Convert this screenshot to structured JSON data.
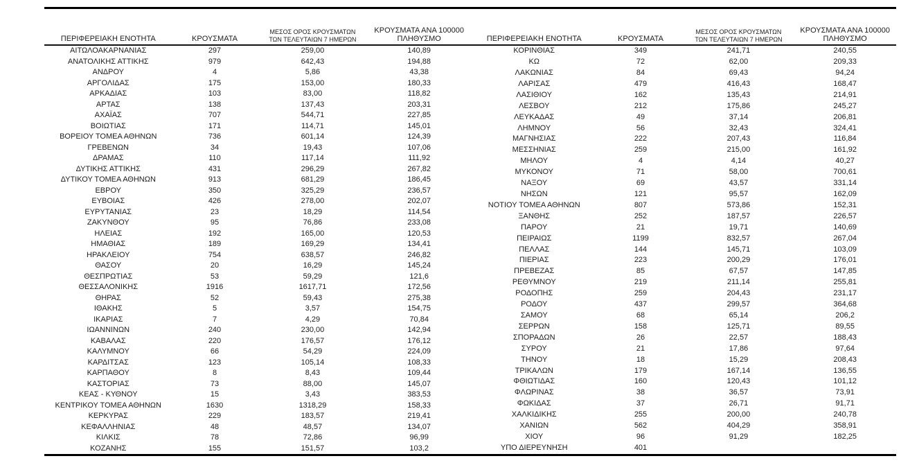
{
  "headers": {
    "region": "ΠΕΡΙΦΕΡΕΙΑΚΗ ΕΝΟΤΗΤΑ",
    "cases": "ΚΡΟΥΣΜΑΤΑ",
    "avg7_line1": "ΜΕΣΟΣ ΟΡΟΣ ΚΡΟΥΣΜΑΤΩΝ",
    "avg7_line2": "ΤΩΝ ΤΕΛΕΥΤΑΙΩΝ 7 ΗΜΕΡΩΝ",
    "per100k_line1": "ΚΡΟΥΣΜΑΤΑ ΑΝΑ 100000",
    "per100k_line2": "ΠΛΗΘΥΣΜΟ"
  },
  "left_table": {
    "rows": [
      {
        "name": "ΑΙΤΩΛΟΑΚΑΡΝΑΝΙΑΣ",
        "cases": "297",
        "avg7": "259,00",
        "per100k": "140,89"
      },
      {
        "name": "ΑΝΑΤΟΛΙΚΗΣ ΑΤΤΙΚΗΣ",
        "cases": "979",
        "avg7": "642,43",
        "per100k": "194,88"
      },
      {
        "name": "ΑΝΔΡΟΥ",
        "cases": "4",
        "avg7": "5,86",
        "per100k": "43,38"
      },
      {
        "name": "ΑΡΓΟΛΙΔΑΣ",
        "cases": "175",
        "avg7": "153,00",
        "per100k": "180,33"
      },
      {
        "name": "ΑΡΚΑΔΙΑΣ",
        "cases": "103",
        "avg7": "83,00",
        "per100k": "118,82"
      },
      {
        "name": "ΑΡΤΑΣ",
        "cases": "138",
        "avg7": "137,43",
        "per100k": "203,31"
      },
      {
        "name": "ΑΧΑΪΑΣ",
        "cases": "707",
        "avg7": "544,71",
        "per100k": "227,85"
      },
      {
        "name": "ΒΟΙΩΤΙΑΣ",
        "cases": "171",
        "avg7": "114,71",
        "per100k": "145,01"
      },
      {
        "name": "ΒΟΡΕΙΟΥ ΤΟΜΕΑ ΑΘΗΝΩΝ",
        "cases": "736",
        "avg7": "601,14",
        "per100k": "124,39"
      },
      {
        "name": "ΓΡΕΒΕΝΩΝ",
        "cases": "34",
        "avg7": "19,43",
        "per100k": "107,06"
      },
      {
        "name": "ΔΡΑΜΑΣ",
        "cases": "110",
        "avg7": "117,14",
        "per100k": "111,92"
      },
      {
        "name": "ΔΥΤΙΚΗΣ ΑΤΤΙΚΗΣ",
        "cases": "431",
        "avg7": "296,29",
        "per100k": "267,82"
      },
      {
        "name": "ΔΥΤΙΚΟΥ ΤΟΜΕΑ ΑΘΗΝΩΝ",
        "cases": "913",
        "avg7": "681,29",
        "per100k": "186,45"
      },
      {
        "name": "ΕΒΡΟΥ",
        "cases": "350",
        "avg7": "325,29",
        "per100k": "236,57"
      },
      {
        "name": "ΕΥΒΟΙΑΣ",
        "cases": "426",
        "avg7": "278,00",
        "per100k": "202,07"
      },
      {
        "name": "ΕΥΡΥΤΑΝΙΑΣ",
        "cases": "23",
        "avg7": "18,29",
        "per100k": "114,54"
      },
      {
        "name": "ΖΑΚΥΝΘΟΥ",
        "cases": "95",
        "avg7": "76,86",
        "per100k": "233,08"
      },
      {
        "name": "ΗΛΕΙΑΣ",
        "cases": "192",
        "avg7": "165,00",
        "per100k": "120,53"
      },
      {
        "name": "ΗΜΑΘΙΑΣ",
        "cases": "189",
        "avg7": "169,29",
        "per100k": "134,41"
      },
      {
        "name": "ΗΡΑΚΛΕΙΟΥ",
        "cases": "754",
        "avg7": "638,57",
        "per100k": "246,82"
      },
      {
        "name": "ΘΑΣΟΥ",
        "cases": "20",
        "avg7": "16,29",
        "per100k": "145,24"
      },
      {
        "name": "ΘΕΣΠΡΩΤΙΑΣ",
        "cases": "53",
        "avg7": "59,29",
        "per100k": "121,6"
      },
      {
        "name": "ΘΕΣΣΑΛΟΝΙΚΗΣ",
        "cases": "1916",
        "avg7": "1617,71",
        "per100k": "172,56"
      },
      {
        "name": "ΘΗΡΑΣ",
        "cases": "52",
        "avg7": "59,43",
        "per100k": "275,38"
      },
      {
        "name": "ΙΘΑΚΗΣ",
        "cases": "5",
        "avg7": "3,57",
        "per100k": "154,75"
      },
      {
        "name": "ΙΚΑΡΙΑΣ",
        "cases": "7",
        "avg7": "4,29",
        "per100k": "70,84"
      },
      {
        "name": "ΙΩΑΝΝΙΝΩΝ",
        "cases": "240",
        "avg7": "230,00",
        "per100k": "142,94"
      },
      {
        "name": "ΚΑΒΑΛΑΣ",
        "cases": "220",
        "avg7": "176,57",
        "per100k": "176,12"
      },
      {
        "name": "ΚΑΛΥΜΝΟΥ",
        "cases": "66",
        "avg7": "54,29",
        "per100k": "224,09"
      },
      {
        "name": "ΚΑΡΔΙΤΣΑΣ",
        "cases": "123",
        "avg7": "105,14",
        "per100k": "108,33"
      },
      {
        "name": "ΚΑΡΠΑΘΟΥ",
        "cases": "8",
        "avg7": "8,43",
        "per100k": "109,44"
      },
      {
        "name": "ΚΑΣΤΟΡΙΑΣ",
        "cases": "73",
        "avg7": "88,00",
        "per100k": "145,07"
      },
      {
        "name": "ΚΕΑΣ - ΚΥΘΝΟΥ",
        "cases": "15",
        "avg7": "3,43",
        "per100k": "383,53"
      },
      {
        "name": "ΚΕΝΤΡΙΚΟΥ ΤΟΜΕΑ ΑΘΗΝΩΝ",
        "cases": "1630",
        "avg7": "1318,29",
        "per100k": "158,33"
      },
      {
        "name": "ΚΕΡΚΥΡΑΣ",
        "cases": "229",
        "avg7": "183,57",
        "per100k": "219,41"
      },
      {
        "name": "ΚΕΦΑΛΛΗΝΙΑΣ",
        "cases": "48",
        "avg7": "48,57",
        "per100k": "134,07"
      },
      {
        "name": "ΚΙΛΚΙΣ",
        "cases": "78",
        "avg7": "72,86",
        "per100k": "96,99"
      },
      {
        "name": "ΚΟΖΑΝΗΣ",
        "cases": "155",
        "avg7": "151,57",
        "per100k": "103,2"
      }
    ]
  },
  "right_table": {
    "rows": [
      {
        "name": "ΚΟΡΙΝΘΙΑΣ",
        "cases": "349",
        "avg7": "241,71",
        "per100k": "240,55"
      },
      {
        "name": "ΚΩ",
        "cases": "72",
        "avg7": "62,00",
        "per100k": "209,33"
      },
      {
        "name": "ΛΑΚΩΝΙΑΣ",
        "cases": "84",
        "avg7": "69,43",
        "per100k": "94,24"
      },
      {
        "name": "ΛΑΡΙΣΑΣ",
        "cases": "479",
        "avg7": "416,43",
        "per100k": "168,47"
      },
      {
        "name": "ΛΑΣΙΘΙΟΥ",
        "cases": "162",
        "avg7": "135,43",
        "per100k": "214,91"
      },
      {
        "name": "ΛΕΣΒΟΥ",
        "cases": "212",
        "avg7": "175,86",
        "per100k": "245,27"
      },
      {
        "name": "ΛΕΥΚΑΔΑΣ",
        "cases": "49",
        "avg7": "37,14",
        "per100k": "206,81"
      },
      {
        "name": "ΛΗΜΝΟΥ",
        "cases": "56",
        "avg7": "32,43",
        "per100k": "324,41"
      },
      {
        "name": "ΜΑΓΝΗΣΙΑΣ",
        "cases": "222",
        "avg7": "207,43",
        "per100k": "116,84"
      },
      {
        "name": "ΜΕΣΣΗΝΙΑΣ",
        "cases": "259",
        "avg7": "215,00",
        "per100k": "161,92"
      },
      {
        "name": "ΜΗΛΟΥ",
        "cases": "4",
        "avg7": "4,14",
        "per100k": "40,27"
      },
      {
        "name": "ΜΥΚΟΝΟΥ",
        "cases": "71",
        "avg7": "58,00",
        "per100k": "700,61"
      },
      {
        "name": "ΝΑΞΟΥ",
        "cases": "69",
        "avg7": "43,57",
        "per100k": "331,14"
      },
      {
        "name": "ΝΗΣΩΝ",
        "cases": "121",
        "avg7": "95,57",
        "per100k": "162,09"
      },
      {
        "name": "ΝΟΤΙΟΥ ΤΟΜΕΑ ΑΘΗΝΩΝ",
        "cases": "807",
        "avg7": "573,86",
        "per100k": "152,31"
      },
      {
        "name": "ΞΑΝΘΗΣ",
        "cases": "252",
        "avg7": "187,57",
        "per100k": "226,57"
      },
      {
        "name": "ΠΑΡΟΥ",
        "cases": "21",
        "avg7": "19,71",
        "per100k": "140,69"
      },
      {
        "name": "ΠΕΙΡΑΙΩΣ",
        "cases": "1199",
        "avg7": "832,57",
        "per100k": "267,04"
      },
      {
        "name": "ΠΕΛΛΑΣ",
        "cases": "144",
        "avg7": "145,71",
        "per100k": "103,09"
      },
      {
        "name": "ΠΙΕΡΙΑΣ",
        "cases": "223",
        "avg7": "200,29",
        "per100k": "176,01"
      },
      {
        "name": "ΠΡΕΒΕΖΑΣ",
        "cases": "85",
        "avg7": "67,57",
        "per100k": "147,85"
      },
      {
        "name": "ΡΕΘΥΜΝΟΥ",
        "cases": "219",
        "avg7": "211,14",
        "per100k": "255,81"
      },
      {
        "name": "ΡΟΔΟΠΗΣ",
        "cases": "259",
        "avg7": "204,43",
        "per100k": "231,17"
      },
      {
        "name": "ΡΟΔΟΥ",
        "cases": "437",
        "avg7": "299,57",
        "per100k": "364,68"
      },
      {
        "name": "ΣΑΜΟΥ",
        "cases": "68",
        "avg7": "65,14",
        "per100k": "206,2"
      },
      {
        "name": "ΣΕΡΡΩΝ",
        "cases": "158",
        "avg7": "125,71",
        "per100k": "89,55"
      },
      {
        "name": "ΣΠΟΡΑΔΩΝ",
        "cases": "26",
        "avg7": "22,57",
        "per100k": "188,43"
      },
      {
        "name": "ΣΥΡΟΥ",
        "cases": "21",
        "avg7": "17,86",
        "per100k": "97,64"
      },
      {
        "name": "ΤΗΝΟΥ",
        "cases": "18",
        "avg7": "15,29",
        "per100k": "208,43"
      },
      {
        "name": "ΤΡΙΚΑΛΩΝ",
        "cases": "179",
        "avg7": "167,14",
        "per100k": "136,55"
      },
      {
        "name": "ΦΘΙΩΤΙΔΑΣ",
        "cases": "160",
        "avg7": "120,43",
        "per100k": "101,12"
      },
      {
        "name": "ΦΛΩΡΙΝΑΣ",
        "cases": "38",
        "avg7": "36,57",
        "per100k": "73,91"
      },
      {
        "name": "ΦΩΚΙΔΑΣ",
        "cases": "37",
        "avg7": "26,71",
        "per100k": "91,71"
      },
      {
        "name": "ΧΑΛΚΙΔΙΚΗΣ",
        "cases": "255",
        "avg7": "200,00",
        "per100k": "240,78"
      },
      {
        "name": "ΧΑΝΙΩΝ",
        "cases": "562",
        "avg7": "404,29",
        "per100k": "358,91"
      },
      {
        "name": "ΧΙΟΥ",
        "cases": "96",
        "avg7": "91,29",
        "per100k": "182,25"
      },
      {
        "name": "ΥΠΟ ΔΙΕΡΕΥΝΗΣΗ",
        "cases": "401",
        "avg7": "",
        "per100k": ""
      }
    ]
  }
}
